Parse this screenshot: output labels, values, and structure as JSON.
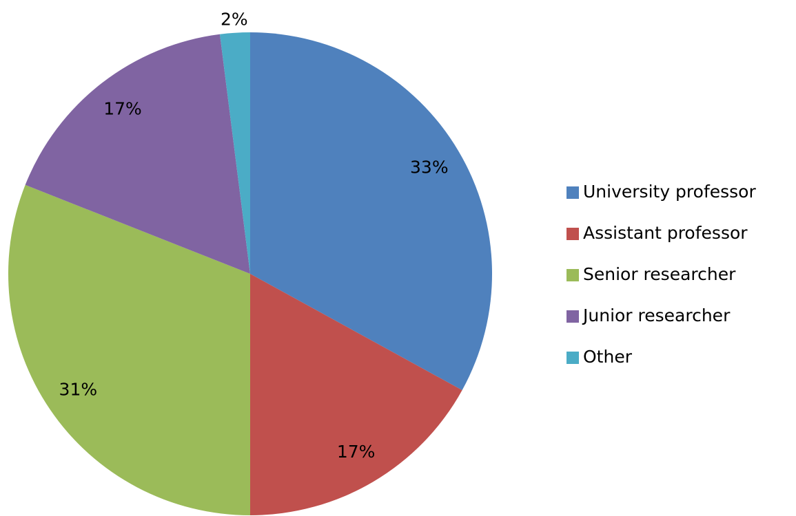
{
  "chart_data": {
    "type": "pie",
    "categories": [
      "University professor",
      "Assistant professor",
      "Senior researcher",
      "Junior researcher",
      "Other"
    ],
    "values": [
      33,
      17,
      31,
      17,
      2
    ],
    "value_labels": [
      "33%",
      "17%",
      "31%",
      "17%",
      "2%"
    ],
    "colors": [
      "#4f81bd",
      "#c0504d",
      "#9bbb59",
      "#8064a2",
      "#4bacc6"
    ],
    "legend": "right"
  }
}
